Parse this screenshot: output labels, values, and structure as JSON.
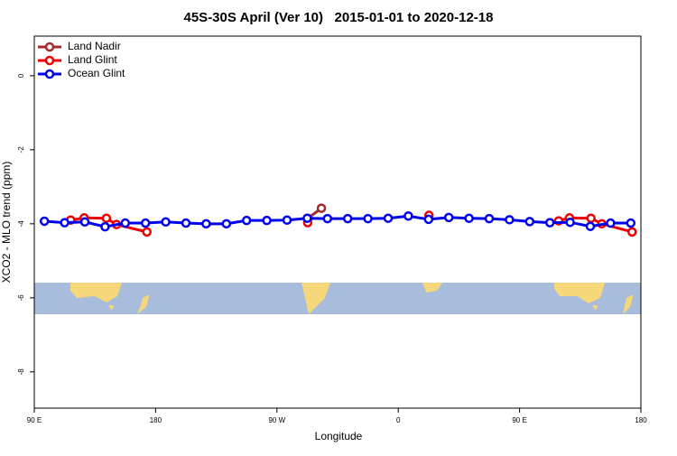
{
  "chart_data": {
    "type": "line",
    "title": "45S-30S April (Ver 10)   2015-01-01 to 2020-12-18",
    "xlabel": "Longitude",
    "ylabel": "XCO2 - MLO trend (ppm)",
    "xlim": [
      90,
      540
    ],
    "ylim": [
      -8.98,
      1.07
    ],
    "xticks": [
      {
        "value": 90,
        "label": "90 E"
      },
      {
        "value": 180,
        "label": "180"
      },
      {
        "value": 270,
        "label": "90 W"
      },
      {
        "value": 360,
        "label": "0"
      },
      {
        "value": 450,
        "label": "90 E"
      },
      {
        "value": 540,
        "label": "180"
      }
    ],
    "yticks": [
      0,
      -2,
      -4,
      -6,
      -8
    ],
    "legend": "top-left",
    "series": [
      {
        "name": "Land Nadir",
        "color": "#a52a2a",
        "x": [
          293,
          303
        ],
        "values": [
          -3.85,
          -3.58
        ]
      },
      {
        "name": "Land Glint",
        "color": "#ee0000",
        "x": [
          117,
          127,
          143.5,
          151,
          173.5,
          null,
          292.8,
          null,
          382.8,
          null,
          479,
          487,
          503,
          511,
          533.5
        ],
        "values": [
          -3.9,
          -3.84,
          -3.85,
          -4.02,
          -4.22,
          null,
          -3.97,
          null,
          -3.77,
          null,
          -3.92,
          -3.84,
          -3.85,
          -4.0,
          -4.22
        ]
      },
      {
        "name": "Ocean Glint",
        "color": "#0000ee",
        "x": [
          97.5,
          112.5,
          127.5,
          142.5,
          157.5,
          172.5,
          187.5,
          202.5,
          217.5,
          232.5,
          247.5,
          262.5,
          277.5,
          292.5,
          307.5,
          322.5,
          337.5,
          352.5,
          367.5,
          382.5,
          397.5,
          412.5,
          427.5,
          442.5,
          457.5,
          472.5,
          487.5,
          502.5,
          517.5,
          532.5
        ],
        "values": [
          -3.93,
          -3.97,
          -3.95,
          -4.08,
          -3.98,
          -3.98,
          -3.95,
          -3.98,
          -4.0,
          -4.0,
          -3.91,
          -3.91,
          -3.9,
          -3.85,
          -3.86,
          -3.86,
          -3.86,
          -3.85,
          -3.79,
          -3.88,
          -3.83,
          -3.85,
          -3.86,
          -3.89,
          -3.94,
          -3.97,
          -3.96,
          -4.07,
          -3.98,
          -3.98
        ]
      }
    ]
  }
}
